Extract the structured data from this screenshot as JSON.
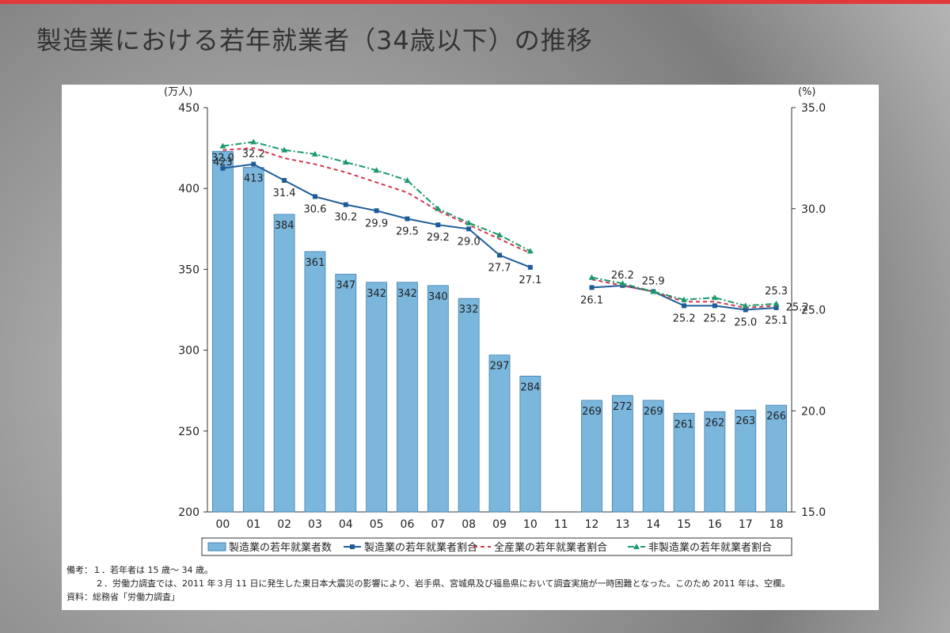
{
  "slide_title": "製造業における若年就業者（34歳以下）の推移",
  "chart_data": {
    "type": "bar",
    "y_unit": "(万人)",
    "y2_unit": "(%)",
    "categories": [
      "00",
      "01",
      "02",
      "03",
      "04",
      "05",
      "06",
      "07",
      "08",
      "09",
      "10",
      "11",
      "12",
      "13",
      "14",
      "15",
      "16",
      "17",
      "18"
    ],
    "ylim": [
      200,
      450
    ],
    "yticks": [
      200,
      250,
      300,
      350,
      400,
      450
    ],
    "y2lim": [
      15,
      35
    ],
    "y2ticks": [
      {
        "value": 15,
        "label": "15.0"
      },
      {
        "value": 20,
        "label": "20.0"
      },
      {
        "value": 25,
        "label": "25.0"
      },
      {
        "value": 30,
        "label": "30.0"
      },
      {
        "value": 35,
        "label": "35.0"
      }
    ],
    "series": [
      {
        "name": "製造業の若年就業者数",
        "type": "bar",
        "color": "#7bb7dd",
        "values": [
          423,
          413,
          384,
          361,
          347,
          342,
          342,
          340,
          332,
          297,
          284,
          null,
          269,
          272,
          269,
          261,
          262,
          263,
          266
        ]
      },
      {
        "name": "製造業の若年就業者割合",
        "type": "line",
        "axis": "y2",
        "color": "#1d5c98",
        "marker": "square",
        "values": [
          32.0,
          32.2,
          31.4,
          30.6,
          30.2,
          29.9,
          29.5,
          29.2,
          29.0,
          27.7,
          27.1,
          null,
          26.1,
          26.2,
          25.9,
          25.2,
          25.2,
          25.0,
          25.1
        ],
        "value_labels": [
          "32.0",
          "32.2",
          "31.4",
          "30.6",
          "30.2",
          "29.9",
          "29.5",
          "29.2",
          "29.0",
          "27.7",
          "27.1",
          null,
          "26.1",
          "26.2",
          "25.9",
          "25.2",
          "25.2",
          "25.0",
          "25.1"
        ]
      },
      {
        "name": "全産業の若年就業者割合",
        "type": "line",
        "axis": "y2",
        "color": "#d2364b",
        "dash": "5,4",
        "values": [
          32.9,
          33.0,
          32.5,
          32.2,
          31.8,
          31.3,
          30.8,
          29.9,
          29.2,
          28.5,
          27.8,
          null,
          26.5,
          26.2,
          25.9,
          25.4,
          25.4,
          25.1,
          25.2
        ],
        "value_labels": [
          null,
          null,
          null,
          null,
          null,
          null,
          null,
          null,
          null,
          null,
          null,
          null,
          null,
          null,
          null,
          null,
          null,
          null,
          "25.2"
        ]
      },
      {
        "name": "非製造業の若年就業者割合",
        "type": "line",
        "axis": "y2",
        "color": "#1a9a6a",
        "dash": "8,3,2,3",
        "marker": "triangle",
        "values": [
          33.1,
          33.3,
          32.9,
          32.7,
          32.3,
          31.9,
          31.4,
          30.0,
          29.3,
          28.7,
          27.9,
          null,
          26.6,
          26.3,
          25.9,
          25.5,
          25.6,
          25.2,
          25.3
        ],
        "value_labels": [
          null,
          null,
          null,
          null,
          null,
          null,
          null,
          null,
          null,
          null,
          null,
          null,
          null,
          null,
          null,
          null,
          null,
          null,
          "25.3"
        ]
      }
    ]
  },
  "notes": [
    "備考：１．若年者は 15 歳～ 34 歳。",
    "２．労働力調査では、2011 年３月 11 日に発生した東日本大震災の影響により、岩手県、宮城県及び福島県において調査実施が一時困難となった。このため 2011 年は、空欄。",
    "資料：総務省「労働力調査」"
  ]
}
